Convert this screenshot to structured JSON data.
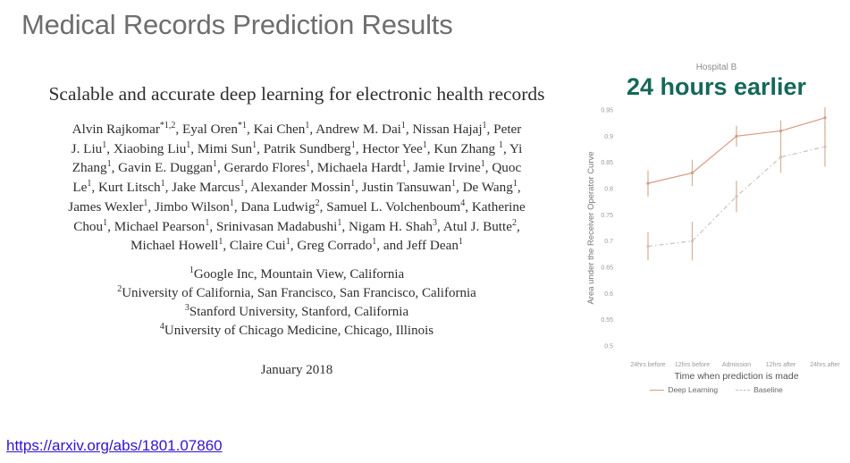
{
  "slide": {
    "title": "Medical Records Prediction Results",
    "link": "https://arxiv.org/abs/1801.07860"
  },
  "paper": {
    "title": "Scalable and accurate deep learning for electronic health records",
    "author_lines": [
      "Alvin Rajkomar<sup>*1,2</sup>, Eyal Oren<sup>*1</sup>, Kai Chen<sup>1</sup>, Andrew M. Dai<sup>1</sup>, Nissan Hajaj<sup>1</sup>, Peter",
      "J. Liu<sup>1</sup>, Xiaobing Liu<sup>1</sup>, Mimi Sun<sup>1</sup>, Patrik Sundberg<sup>1</sup>, Hector Yee<sup>1</sup>, Kun Zhang <sup>1</sup>, Yi",
      "Zhang<sup>1</sup>, Gavin E. Duggan<sup>1</sup>, Gerardo Flores<sup>1</sup>, Michaela Hardt<sup>1</sup>, Jamie Irvine<sup>1</sup>, Quoc",
      "Le<sup>1</sup>, Kurt Litsch<sup>1</sup>, Jake Marcus<sup>1</sup>, Alexander Mossin<sup>1</sup>, Justin Tansuwan<sup>1</sup>, De Wang<sup>1</sup>,",
      "James Wexler<sup>1</sup>, Jimbo Wilson<sup>1</sup>, Dana Ludwig<sup>2</sup>, Samuel L. Volchenboum<sup>4</sup>, Katherine",
      "Chou<sup>1</sup>, Michael Pearson<sup>1</sup>, Srinivasan Madabushi<sup>1</sup>, Nigam H. Shah<sup>3</sup>, Atul J. Butte<sup>2</sup>,",
      "Michael Howell<sup>1</sup>, Claire Cui<sup>1</sup>, Greg Corrado<sup>1</sup>, and Jeff Dean<sup>1</sup>"
    ],
    "affiliations": [
      "<sup>1</sup>Google Inc, Mountain View, California",
      "<sup>2</sup>University of California, San Francisco, San Francisco, California",
      "<sup>3</sup>Stanford University, Stanford, California",
      "<sup>4</sup>University of Chicago Medicine, Chicago, Illinois"
    ],
    "date": "January 2018"
  },
  "annotation": {
    "hospital_label": "Hospital B",
    "headline": "24 hours earlier",
    "headline_color": "#15685a"
  },
  "chart_data": {
    "type": "line",
    "title": "Hospital B",
    "categories": [
      "24hrs before",
      "12hrs before",
      "Admission",
      "12hrs after",
      "24hrs after"
    ],
    "series": [
      {
        "name": "Deep Learning",
        "style": "solid",
        "color": "#d79a83",
        "values": [
          0.81,
          0.83,
          0.9,
          0.91,
          0.935
        ],
        "error": [
          0.025,
          0.025,
          0.02,
          0.02,
          0.02
        ]
      },
      {
        "name": "Baseline",
        "style": "dashdot",
        "color": "#c9c2b9",
        "values": [
          0.69,
          0.7,
          0.785,
          0.86,
          0.88
        ],
        "error": [
          0.027,
          0.037,
          0.03,
          0.03,
          0.038
        ]
      }
    ],
    "xlabel": "Time when prediction is made",
    "ylabel": "Area under the Receiver Operator Curve",
    "ylim": [
      0.5,
      0.95
    ],
    "ytick_step": 0.05,
    "error_bar_color": "#d9b49b",
    "grid": false,
    "legend_position": "bottom"
  }
}
